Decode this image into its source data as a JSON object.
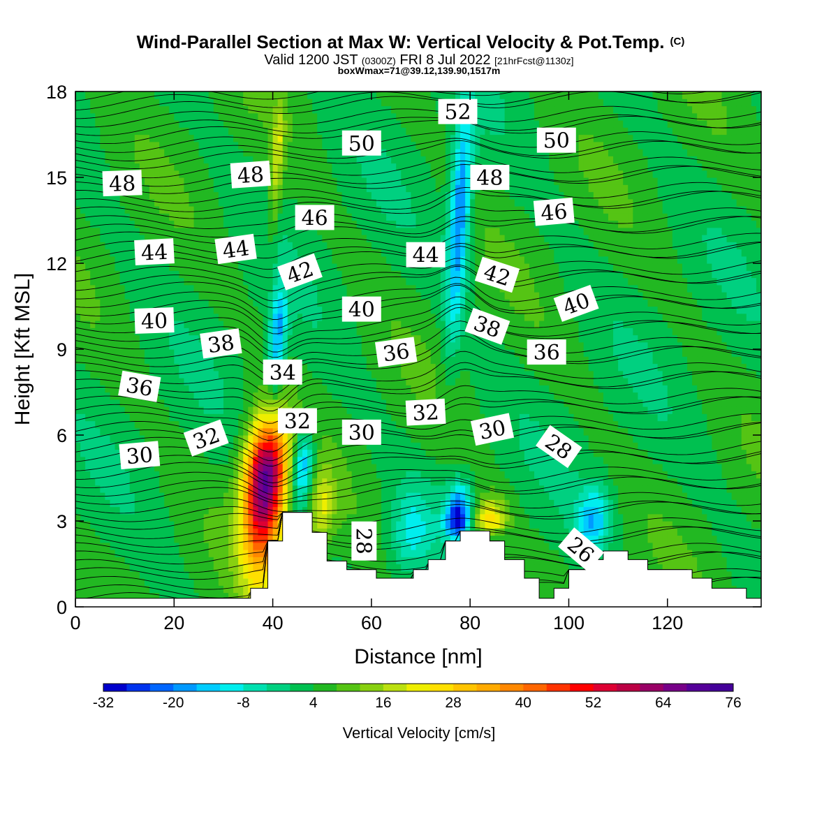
{
  "chart_data": {
    "type": "heatmap",
    "title": "Wind-Parallel Section at Max W: Vertical Velocity & Pot.Temp.",
    "title_mark": "(C)",
    "subtitle_parts": [
      "Valid 1200 JST",
      "(0300Z)",
      "FRI 8 Jul 2022",
      "[21hrFcst@1130z]"
    ],
    "subtitle2": "boxWmax=71@39.12,139.90,1517m",
    "xlabel": "Distance [nm]",
    "ylabel": "Height [Kft MSL]",
    "xlim": [
      0,
      139
    ],
    "ylim": [
      0,
      18
    ],
    "x_ticks": [
      0,
      20,
      40,
      60,
      80,
      100,
      120
    ],
    "y_ticks": [
      0,
      3,
      6,
      9,
      12,
      15,
      18
    ],
    "grid": false,
    "colorbar": {
      "label": "Vertical Velocity [cm/s]",
      "min": -32,
      "max": 76,
      "step": 4,
      "tick_labels": [
        -32,
        -20,
        -8,
        4,
        16,
        28,
        40,
        52,
        64,
        76
      ],
      "colors": [
        "#0000cc",
        "#0033ee",
        "#0066ff",
        "#0099ff",
        "#00ccff",
        "#00eeee",
        "#00e0b0",
        "#00d080",
        "#00c050",
        "#22b822",
        "#55c414",
        "#88d010",
        "#bbe010",
        "#eeee00",
        "#ffe000",
        "#ffc400",
        "#ffaa00",
        "#ff8800",
        "#ff6600",
        "#ff3300",
        "#ff0000",
        "#dd0033",
        "#bb0044",
        "#990066",
        "#770088",
        "#550099",
        "#440099"
      ]
    },
    "vertical_velocity_features": [
      {
        "x_center": 38.5,
        "x_halfwidth": 5,
        "z_top": 7.0,
        "z_bottom": 0.6,
        "z_peak": 4.5,
        "peak_cm_s": 71,
        "sign": "updraft"
      },
      {
        "x_center": 46,
        "x_halfwidth": 2.5,
        "z_top": 6.5,
        "z_bottom": 3.0,
        "z_peak": 5.0,
        "peak_cm_s": -20,
        "sign": "downdraft"
      },
      {
        "x_center": 41,
        "x_halfwidth": 2,
        "z_top": 11.5,
        "z_bottom": 7.0,
        "z_peak": 9.5,
        "peak_cm_s": -18,
        "sign": "downdraft"
      },
      {
        "x_center": 41,
        "x_halfwidth": 1.5,
        "z_top": 18,
        "z_bottom": 12.0,
        "z_peak": 16,
        "peak_cm_s": 18,
        "sign": "updraft"
      },
      {
        "x_center": 77.5,
        "x_halfwidth": 3,
        "z_top": 4.5,
        "z_bottom": 2.3,
        "z_peak": 3.0,
        "peak_cm_s": -30,
        "sign": "downdraft"
      },
      {
        "x_center": 78,
        "x_halfwidth": 2.5,
        "z_top": 18,
        "z_bottom": 8.5,
        "z_peak": 14,
        "peak_cm_s": -22,
        "sign": "downdraft"
      },
      {
        "x_center": 84,
        "x_halfwidth": 4,
        "z_top": 4.0,
        "z_bottom": 2.5,
        "z_peak": 3.0,
        "peak_cm_s": 26,
        "sign": "updraft"
      },
      {
        "x_center": 50,
        "x_halfwidth": 3,
        "z_top": 5.0,
        "z_bottom": 1.5,
        "z_peak": 3.5,
        "peak_cm_s": 18,
        "sign": "updraft"
      },
      {
        "x_center": 105,
        "x_halfwidth": 4,
        "z_top": 4.5,
        "z_bottom": 1.8,
        "z_peak": 3.0,
        "peak_cm_s": -14,
        "sign": "downdraft"
      },
      {
        "x_center": 68,
        "x_halfwidth": 5,
        "z_top": 4.5,
        "z_bottom": 1.0,
        "z_peak": 2.5,
        "peak_cm_s": -8,
        "sign": "downdraft"
      }
    ],
    "potential_temperature_labels": [
      {
        "value": "48",
        "x": 9.5,
        "z": 14.8,
        "angle": -2
      },
      {
        "value": "48",
        "x": 35.5,
        "z": 15.1,
        "angle": -4
      },
      {
        "value": "50",
        "x": 58,
        "z": 16.2,
        "angle": 0
      },
      {
        "value": "52",
        "x": 77.5,
        "z": 17.3,
        "angle": 0
      },
      {
        "value": "50",
        "x": 97.5,
        "z": 16.3,
        "angle": 0
      },
      {
        "value": "48",
        "x": 84,
        "z": 15.0,
        "angle": 0
      },
      {
        "value": "46",
        "x": 48.5,
        "z": 13.6,
        "angle": 0
      },
      {
        "value": "46",
        "x": 97,
        "z": 13.8,
        "angle": -5
      },
      {
        "value": "44",
        "x": 16,
        "z": 12.4,
        "angle": -3
      },
      {
        "value": "44",
        "x": 32.5,
        "z": 12.5,
        "angle": -8
      },
      {
        "value": "44",
        "x": 71,
        "z": 12.3,
        "angle": 0
      },
      {
        "value": "42",
        "x": 45.5,
        "z": 11.7,
        "angle": -20
      },
      {
        "value": "42",
        "x": 85.5,
        "z": 11.6,
        "angle": 18
      },
      {
        "value": "40",
        "x": 16,
        "z": 10.0,
        "angle": -2
      },
      {
        "value": "40",
        "x": 58,
        "z": 10.4,
        "angle": 0
      },
      {
        "value": "40",
        "x": 101.5,
        "z": 10.6,
        "angle": -20
      },
      {
        "value": "38",
        "x": 29.5,
        "z": 9.2,
        "angle": -8
      },
      {
        "value": "38",
        "x": 83.5,
        "z": 9.8,
        "angle": 20
      },
      {
        "value": "36",
        "x": 13,
        "z": 7.7,
        "angle": 10
      },
      {
        "value": "36",
        "x": 65,
        "z": 8.9,
        "angle": -8
      },
      {
        "value": "36",
        "x": 95.5,
        "z": 8.9,
        "angle": 0
      },
      {
        "value": "34",
        "x": 42,
        "z": 8.2,
        "angle": 0
      },
      {
        "value": "32",
        "x": 26.5,
        "z": 5.9,
        "angle": -20
      },
      {
        "value": "32",
        "x": 45,
        "z": 6.5,
        "angle": 0
      },
      {
        "value": "32",
        "x": 71,
        "z": 6.8,
        "angle": -3
      },
      {
        "value": "30",
        "x": 13,
        "z": 5.3,
        "angle": -5
      },
      {
        "value": "30",
        "x": 58,
        "z": 6.1,
        "angle": 0
      },
      {
        "value": "30",
        "x": 84.5,
        "z": 6.2,
        "angle": -12
      },
      {
        "value": "28",
        "x": 98,
        "z": 5.6,
        "angle": 35
      },
      {
        "value": "28",
        "x": 58.5,
        "z": 2.3,
        "angle": 90
      },
      {
        "value": "26",
        "x": 102.5,
        "z": 2.0,
        "angle": 40
      }
    ],
    "terrain_nm_kft": [
      [
        0,
        0.3
      ],
      [
        35.5,
        0.3
      ],
      [
        35.5,
        0.65
      ],
      [
        39,
        0.65
      ],
      [
        39,
        2.3
      ],
      [
        42,
        2.3
      ],
      [
        42,
        3.3
      ],
      [
        48,
        3.3
      ],
      [
        48,
        2.6
      ],
      [
        51,
        2.6
      ],
      [
        51,
        1.6
      ],
      [
        55,
        1.6
      ],
      [
        55,
        1.3
      ],
      [
        61,
        1.3
      ],
      [
        61,
        1.0
      ],
      [
        68.5,
        1.0
      ],
      [
        68.5,
        1.3
      ],
      [
        71.5,
        1.3
      ],
      [
        71.5,
        1.65
      ],
      [
        75,
        1.65
      ],
      [
        75,
        2.3
      ],
      [
        78,
        2.3
      ],
      [
        78,
        2.65
      ],
      [
        84,
        2.65
      ],
      [
        84,
        2.3
      ],
      [
        87,
        2.3
      ],
      [
        87,
        1.65
      ],
      [
        91,
        1.65
      ],
      [
        91,
        1.0
      ],
      [
        94,
        1.0
      ],
      [
        94,
        0.3
      ],
      [
        97,
        0.3
      ],
      [
        97,
        0.65
      ],
      [
        100,
        0.65
      ],
      [
        100,
        1.3
      ],
      [
        104,
        1.3
      ],
      [
        104,
        1.65
      ],
      [
        107,
        1.65
      ],
      [
        107,
        1.95
      ],
      [
        112,
        1.95
      ],
      [
        112,
        1.65
      ],
      [
        116,
        1.65
      ],
      [
        116,
        1.3
      ],
      [
        125,
        1.3
      ],
      [
        125,
        1.0
      ],
      [
        129,
        1.0
      ],
      [
        129,
        0.65
      ],
      [
        136,
        0.65
      ],
      [
        136,
        0.3
      ],
      [
        139,
        0.3
      ]
    ]
  }
}
